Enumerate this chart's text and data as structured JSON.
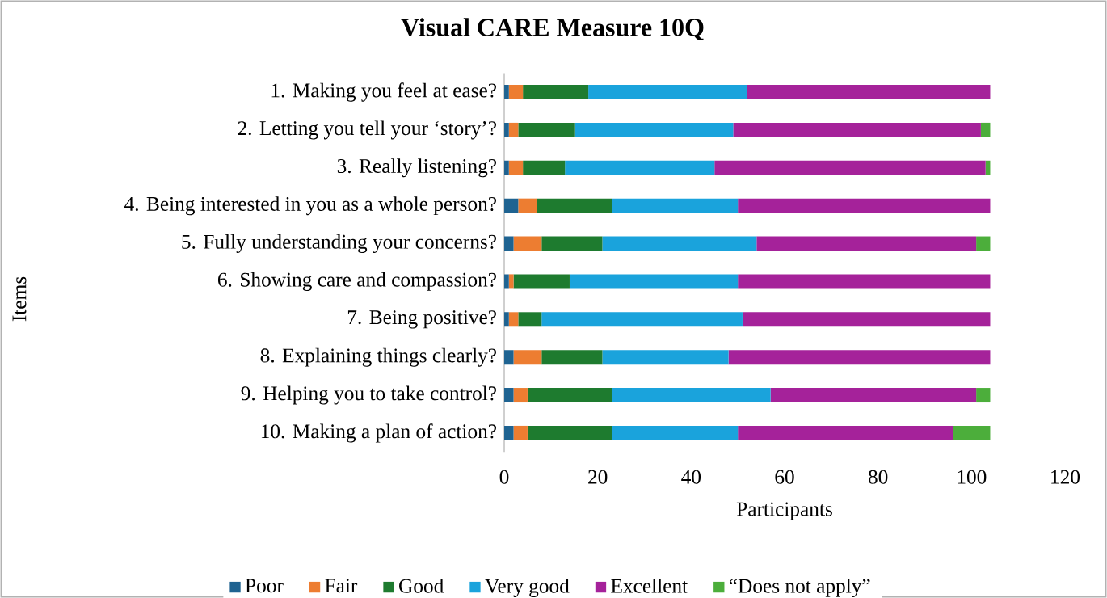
{
  "chart_data": {
    "type": "bar",
    "orientation": "horizontal",
    "stacked": true,
    "title": "Visual CARE Measure 10Q",
    "xlabel": "Participants",
    "ylabel": "Items",
    "categories": [
      "1. Making you feel at ease?",
      "2. Letting you tell your ‘story’?",
      "3. Really listening?",
      "4. Being interested in you as a whole person?",
      "5. Fully understanding your concerns?",
      "6. Showing care and compassion?",
      "7. Being positive?",
      "8. Explaining things clearly?",
      "9. Helping you to take control?",
      "10. Making a plan of action?"
    ],
    "series": [
      {
        "name": "Poor",
        "color": "#1f6391",
        "values": [
          1,
          1,
          1,
          3,
          2,
          1,
          1,
          2,
          2,
          2
        ]
      },
      {
        "name": "Fair",
        "color": "#ed7d31",
        "values": [
          3,
          2,
          3,
          4,
          6,
          1,
          2,
          6,
          3,
          3
        ]
      },
      {
        "name": "Good",
        "color": "#1e7b2f",
        "values": [
          14,
          12,
          9,
          16,
          13,
          12,
          5,
          13,
          18,
          18
        ]
      },
      {
        "name": "Very good",
        "color": "#1aa3dc",
        "values": [
          34,
          34,
          32,
          27,
          33,
          36,
          43,
          27,
          34,
          27
        ]
      },
      {
        "name": "Excellent",
        "color": "#a5229a",
        "values": [
          52,
          53,
          58,
          54,
          47,
          54,
          53,
          56,
          44,
          46
        ]
      },
      {
        "name": "“Does not apply”",
        "color": "#4cae3b",
        "values": [
          0,
          2,
          1,
          0,
          3,
          0,
          0,
          0,
          3,
          8
        ]
      }
    ],
    "xlim": [
      0,
      120
    ],
    "xticks": [
      0,
      20,
      40,
      60,
      80,
      100,
      120
    ],
    "legend": "bottom"
  }
}
